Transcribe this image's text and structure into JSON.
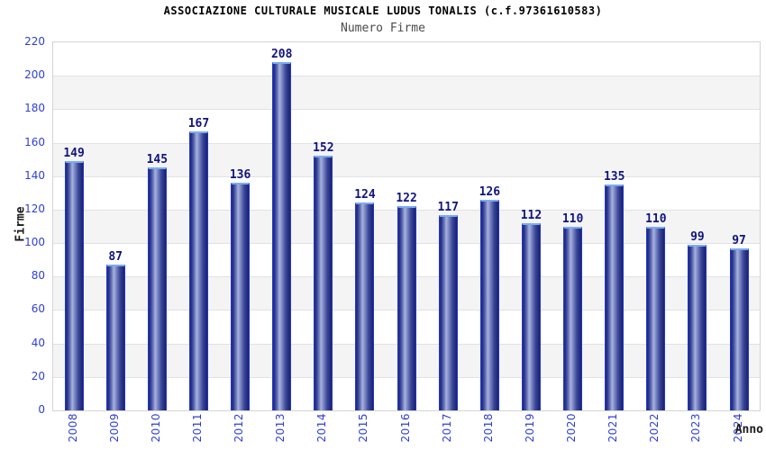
{
  "header": {
    "title": "ASSOCIAZIONE CULTURALE MUSICALE LUDUS TONALIS (c.f.97361610583)",
    "subtitle": "Numero Firme"
  },
  "chart_data": {
    "type": "bar",
    "title": "ASSOCIAZIONE CULTURALE MUSICALE LUDUS TONALIS (c.f.97361610583)",
    "subtitle": "Numero Firme",
    "xlabel": "Anno",
    "ylabel": "Firme",
    "categories": [
      "2008",
      "2009",
      "2010",
      "2011",
      "2012",
      "2013",
      "2014",
      "2015",
      "2016",
      "2017",
      "2018",
      "2019",
      "2020",
      "2021",
      "2022",
      "2023",
      "2024"
    ],
    "values": [
      149,
      87,
      145,
      167,
      136,
      208,
      152,
      124,
      122,
      117,
      126,
      112,
      110,
      135,
      110,
      99,
      97
    ],
    "ylim": [
      0,
      220
    ],
    "ytick_step": 20,
    "grid": true,
    "banded_background": true,
    "legend": "none",
    "colors": {
      "tick_label": "#2e3ed6",
      "value_label": "#10147e",
      "band": "#f4f4f4",
      "gridline": "#e2e2e2",
      "plot_border": "#d4d4d4",
      "bar_outline": "#2136cc",
      "bar_top_cap": "#79acf2",
      "bar_gradient": [
        "#1f2a80",
        "#2c3890",
        "#6a77b8",
        "#a8b1de",
        "#7d89c4",
        "#3a4698",
        "#1a2270"
      ]
    }
  }
}
